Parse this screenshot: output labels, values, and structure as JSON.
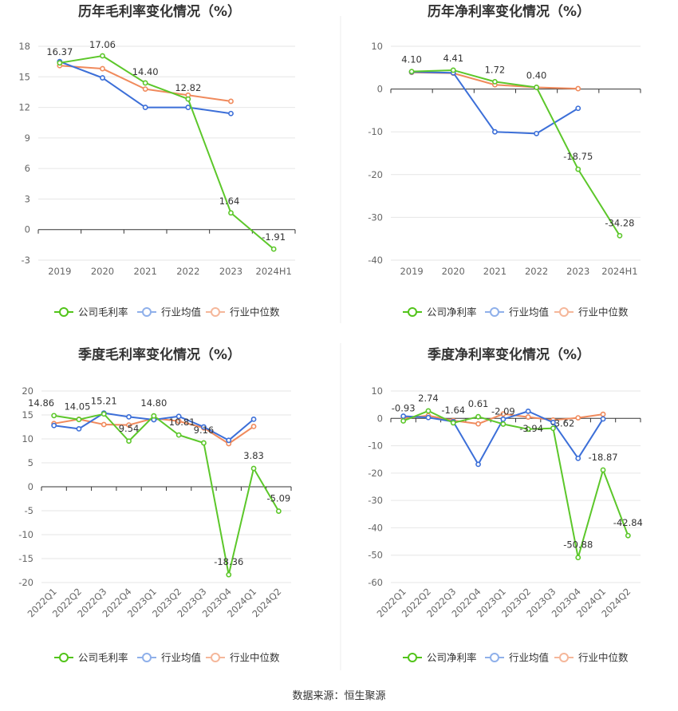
{
  "source_text": "数据来源：恒生聚源",
  "colors": {
    "company": "#5cc72a",
    "industry_avg": "#3c6fd8",
    "industry_median": "#f08a5c",
    "company_legend": "#52c41a",
    "industry_avg_legend": "#8fb0ea",
    "industry_median_legend": "#f5b79a",
    "divider": "#eeeeee"
  },
  "chart_data": [
    {
      "type": "line",
      "title": "历年毛利率变化情况（%）",
      "categories": [
        "2019",
        "2020",
        "2021",
        "2022",
        "2023",
        "2024H1"
      ],
      "ylim": [
        -3,
        18
      ],
      "yticks": [
        18,
        15,
        12,
        9,
        6,
        3,
        0,
        -3
      ],
      "series": [
        {
          "name": "公司毛利率",
          "values": [
            16.37,
            17.06,
            14.4,
            12.82,
            1.64,
            -1.91
          ]
        },
        {
          "name": "行业均值",
          "values": [
            16.5,
            14.9,
            12.0,
            12.0,
            11.4,
            null
          ]
        },
        {
          "name": "行业中位数",
          "values": [
            16.1,
            15.8,
            13.8,
            13.2,
            12.6,
            null
          ]
        }
      ],
      "data_labels": [
        "16.37",
        "17.06",
        "14.40",
        "12.82",
        "1.64",
        "-1.91"
      ],
      "grid": true,
      "legend": "bottom",
      "rotate_x": false
    },
    {
      "type": "line",
      "title": "历年净利率变化情况（%）",
      "categories": [
        "2019",
        "2020",
        "2021",
        "2022",
        "2023",
        "2024H1"
      ],
      "ylim": [
        -40,
        10
      ],
      "yticks": [
        10,
        0,
        -10,
        -20,
        -30,
        -40
      ],
      "series": [
        {
          "name": "公司净利率",
          "values": [
            4.1,
            4.41,
            1.72,
            0.4,
            -18.75,
            -34.28
          ]
        },
        {
          "name": "行业均值",
          "values": [
            4.0,
            3.8,
            -10.0,
            -10.4,
            -4.5,
            null
          ]
        },
        {
          "name": "行业中位数",
          "values": [
            3.9,
            3.7,
            1.0,
            0.4,
            0.1,
            null
          ]
        }
      ],
      "data_labels": [
        "4.10",
        "4.41",
        "1.72",
        "0.40",
        "-18.75",
        "-34.28"
      ],
      "grid": true,
      "legend": "bottom",
      "rotate_x": false
    },
    {
      "type": "line",
      "title": "季度毛利率变化情况（%）",
      "categories": [
        "2022Q1",
        "2022Q2",
        "2022Q3",
        "2022Q4",
        "2023Q1",
        "2023Q2",
        "2023Q3",
        "2023Q4",
        "2024Q1",
        "2024Q2"
      ],
      "ylim": [
        -20,
        20
      ],
      "yticks": [
        20,
        15,
        10,
        5,
        0,
        -5,
        -10,
        -15,
        -20
      ],
      "series": [
        {
          "name": "公司毛利率",
          "values": [
            14.86,
            14.05,
            15.21,
            9.54,
            14.8,
            10.81,
            9.16,
            -18.36,
            3.83,
            -5.09
          ]
        },
        {
          "name": "行业均值",
          "values": [
            12.8,
            12.1,
            15.4,
            14.6,
            14.0,
            14.7,
            12.5,
            9.7,
            14.1,
            null
          ]
        },
        {
          "name": "行业中位数",
          "values": [
            13.2,
            14.1,
            13.0,
            12.9,
            14.3,
            13.7,
            12.3,
            9.0,
            12.6,
            null
          ]
        }
      ],
      "data_labels": [
        "14.86",
        "14.05",
        "15.21",
        "9.54",
        "14.80",
        "10.81",
        "9.16",
        "-18.36",
        "3.83",
        "-5.09"
      ],
      "grid": true,
      "legend": "bottom",
      "rotate_x": true
    },
    {
      "type": "line",
      "title": "季度净利率变化情况（%）",
      "categories": [
        "2022Q1",
        "2022Q2",
        "2022Q3",
        "2022Q4",
        "2023Q1",
        "2023Q2",
        "2023Q3",
        "2023Q4",
        "2024Q1",
        "2024Q2"
      ],
      "ylim": [
        -60,
        10
      ],
      "yticks": [
        10,
        0,
        -10,
        -20,
        -30,
        -40,
        -50,
        -60
      ],
      "series": [
        {
          "name": "公司净利率",
          "values": [
            -0.93,
            2.74,
            -1.64,
            0.61,
            -2.09,
            -3.94,
            -3.62,
            -50.88,
            -18.87,
            -42.84
          ]
        },
        {
          "name": "行业均值",
          "values": [
            0.8,
            0.3,
            -1.2,
            -16.8,
            -0.3,
            2.6,
            -1.5,
            -14.6,
            -0.2,
            null
          ]
        },
        {
          "name": "行业中位数",
          "values": [
            0.1,
            1.0,
            -0.8,
            -2.0,
            1.6,
            0.5,
            -0.6,
            0.2,
            1.5,
            null
          ]
        }
      ],
      "data_labels": [
        "-0.93",
        "2.74",
        "-1.64",
        "0.61",
        "-2.09",
        "-3.94",
        "-3.62",
        "-50.88",
        "-18.87",
        "-42.84"
      ],
      "grid": true,
      "legend": "bottom",
      "rotate_x": true
    }
  ]
}
